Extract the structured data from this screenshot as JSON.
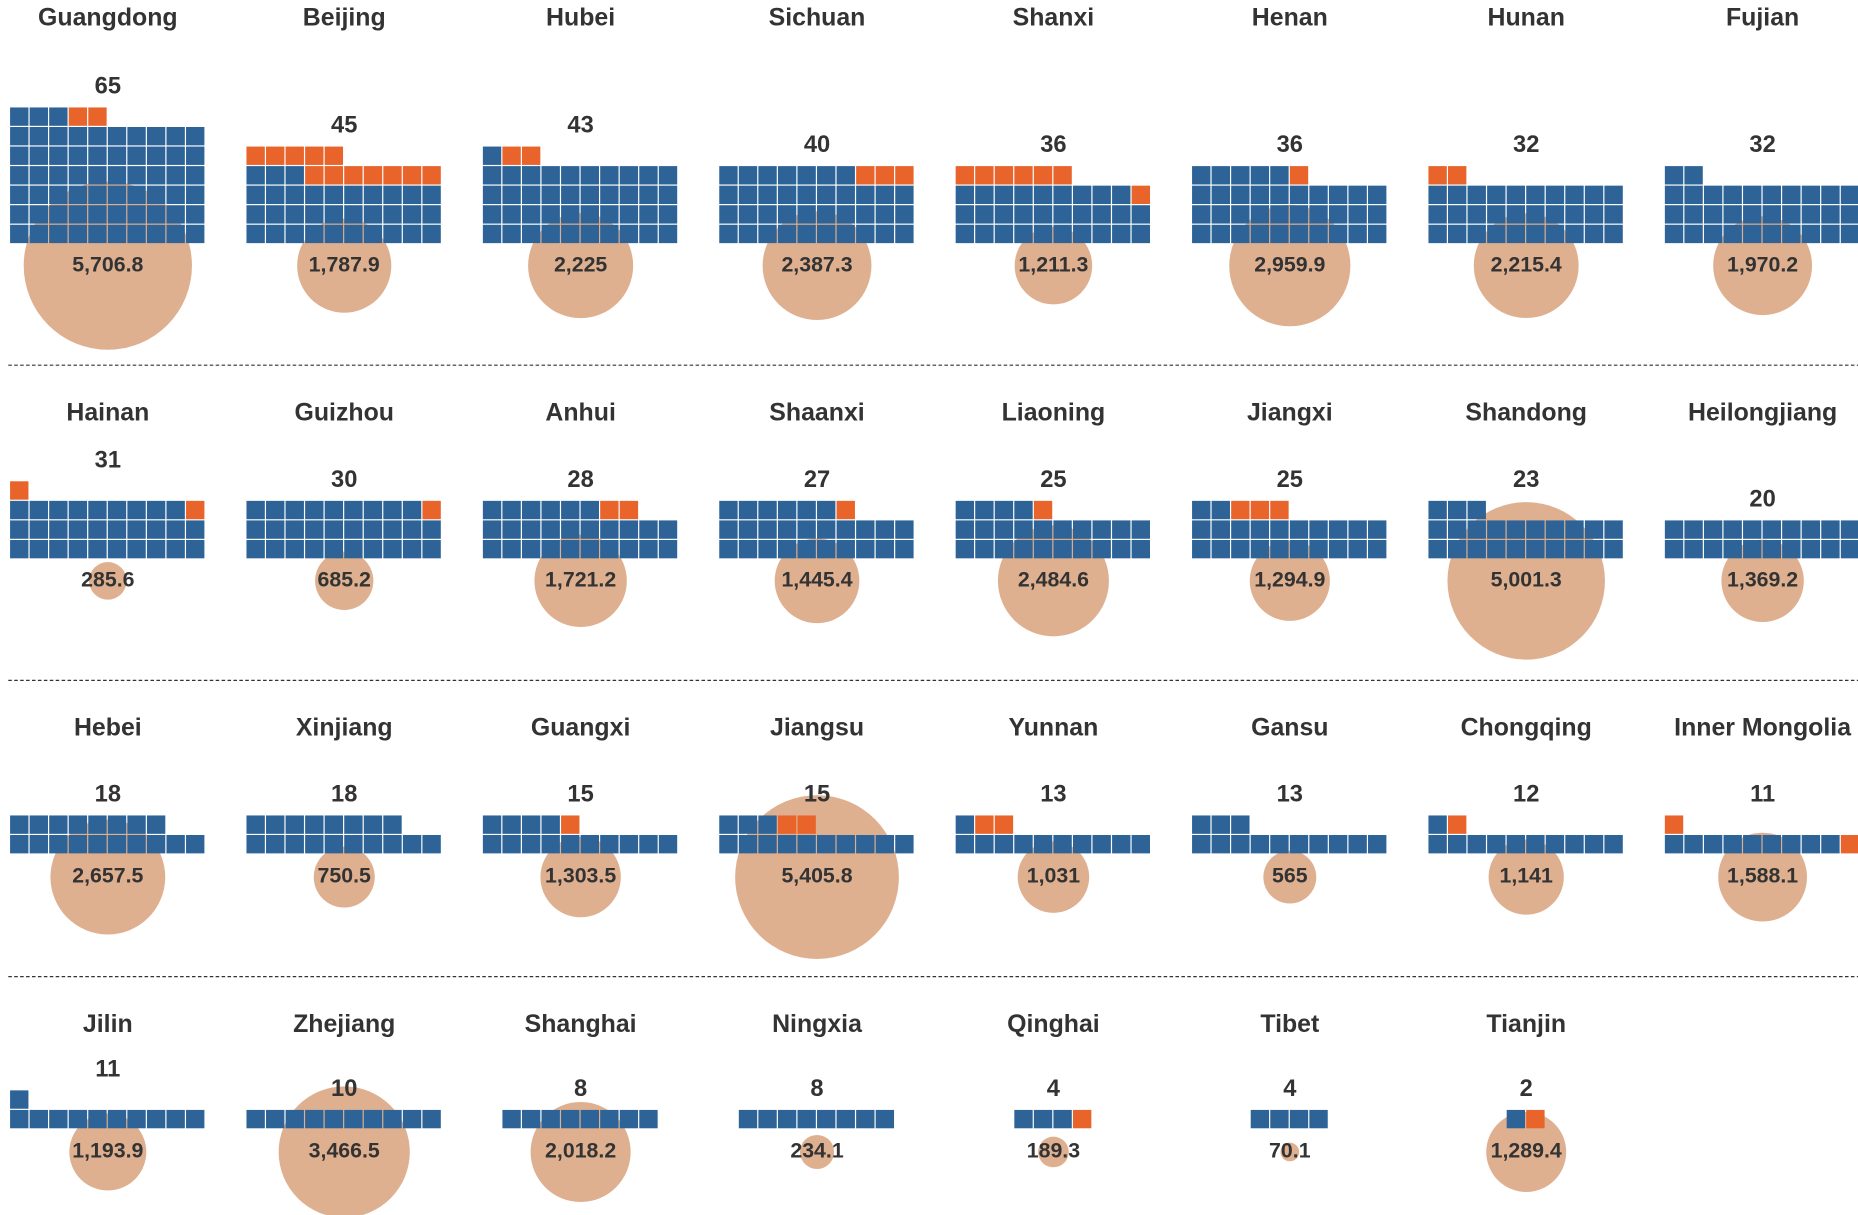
{
  "chart_data": {
    "type": "waffle",
    "main_color": "#2d6396",
    "highlight_color": "#e8642b",
    "bubble_color": "#d9a27c",
    "panels": [
      {
        "name": "Guangdong",
        "total": 65,
        "highlight": 2,
        "bubble": 5706.8,
        "bubble_label": "5,706.8"
      },
      {
        "name": "Beijing",
        "total": 45,
        "highlight": 12,
        "bubble": 1787.9,
        "bubble_label": "1,787.9"
      },
      {
        "name": "Hubei",
        "total": 43,
        "highlight": 2,
        "bubble": 2225,
        "bubble_label": "2,225"
      },
      {
        "name": "Sichuan",
        "total": 40,
        "highlight": 3,
        "bubble": 2387.3,
        "bubble_label": "2,387.3"
      },
      {
        "name": "Shanxi",
        "total": 36,
        "highlight": 7,
        "bubble": 1211.3,
        "bubble_label": "1,211.3"
      },
      {
        "name": "Henan",
        "total": 36,
        "highlight": 1,
        "bubble": 2959.9,
        "bubble_label": "2,959.9"
      },
      {
        "name": "Hunan",
        "total": 32,
        "highlight": 2,
        "bubble": 2215.4,
        "bubble_label": "2,215.4"
      },
      {
        "name": "Fujian",
        "total": 32,
        "highlight": 0,
        "bubble": 1970.2,
        "bubble_label": "1,970.2"
      },
      {
        "name": "Hainan",
        "total": 31,
        "highlight": 2,
        "bubble": 285.6,
        "bubble_label": "285.6"
      },
      {
        "name": "Guizhou",
        "total": 30,
        "highlight": 1,
        "bubble": 685.2,
        "bubble_label": "685.2"
      },
      {
        "name": "Anhui",
        "total": 28,
        "highlight": 2,
        "bubble": 1721.2,
        "bubble_label": "1,721.2"
      },
      {
        "name": "Shaanxi",
        "total": 27,
        "highlight": 1,
        "bubble": 1445.4,
        "bubble_label": "1,445.4"
      },
      {
        "name": "Liaoning",
        "total": 25,
        "highlight": 1,
        "bubble": 2484.6,
        "bubble_label": "2,484.6"
      },
      {
        "name": "Jiangxi",
        "total": 25,
        "highlight": 3,
        "bubble": 1294.9,
        "bubble_label": "1,294.9"
      },
      {
        "name": "Shandong",
        "total": 23,
        "highlight": 0,
        "bubble": 5001.3,
        "bubble_label": "5,001.3"
      },
      {
        "name": "Heilongjiang",
        "total": 20,
        "highlight": 0,
        "bubble": 1369.2,
        "bubble_label": "1,369.2"
      },
      {
        "name": "Hebei",
        "total": 18,
        "highlight": 0,
        "bubble": 2657.5,
        "bubble_label": "2,657.5"
      },
      {
        "name": "Xinjiang",
        "total": 18,
        "highlight": 0,
        "bubble": 750.5,
        "bubble_label": "750.5"
      },
      {
        "name": "Guangxi",
        "total": 15,
        "highlight": 1,
        "bubble": 1303.5,
        "bubble_label": "1,303.5"
      },
      {
        "name": "Jiangsu",
        "total": 15,
        "highlight": 2,
        "bubble": 5405.8,
        "bubble_label": "5,405.8"
      },
      {
        "name": "Yunnan",
        "total": 13,
        "highlight": 2,
        "bubble": 1031,
        "bubble_label": "1,031"
      },
      {
        "name": "Gansu",
        "total": 13,
        "highlight": 0,
        "bubble": 565,
        "bubble_label": "565"
      },
      {
        "name": "Chongqing",
        "total": 12,
        "highlight": 1,
        "bubble": 1141,
        "bubble_label": "1,141"
      },
      {
        "name": "Inner Mongolia",
        "total": 11,
        "highlight": 2,
        "bubble": 1588.1,
        "bubble_label": "1,588.1"
      },
      {
        "name": "Jilin",
        "total": 11,
        "highlight": 0,
        "bubble": 1193.9,
        "bubble_label": "1,193.9"
      },
      {
        "name": "Zhejiang",
        "total": 10,
        "highlight": 0,
        "bubble": 3466.5,
        "bubble_label": "3,466.5"
      },
      {
        "name": "Shanghai",
        "total": 8,
        "highlight": 0,
        "bubble": 2018.2,
        "bubble_label": "2,018.2"
      },
      {
        "name": "Ningxia",
        "total": 8,
        "highlight": 0,
        "bubble": 234.1,
        "bubble_label": "234.1"
      },
      {
        "name": "Qinghai",
        "total": 4,
        "highlight": 1,
        "bubble": 189.3,
        "bubble_label": "189.3"
      },
      {
        "name": "Tibet",
        "total": 4,
        "highlight": 0,
        "bubble": 70.1,
        "bubble_label": "70.1"
      },
      {
        "name": "Tianjin",
        "total": 2,
        "highlight": 1,
        "bubble": 1289.4,
        "bubble_label": "1,289.4"
      }
    ]
  }
}
